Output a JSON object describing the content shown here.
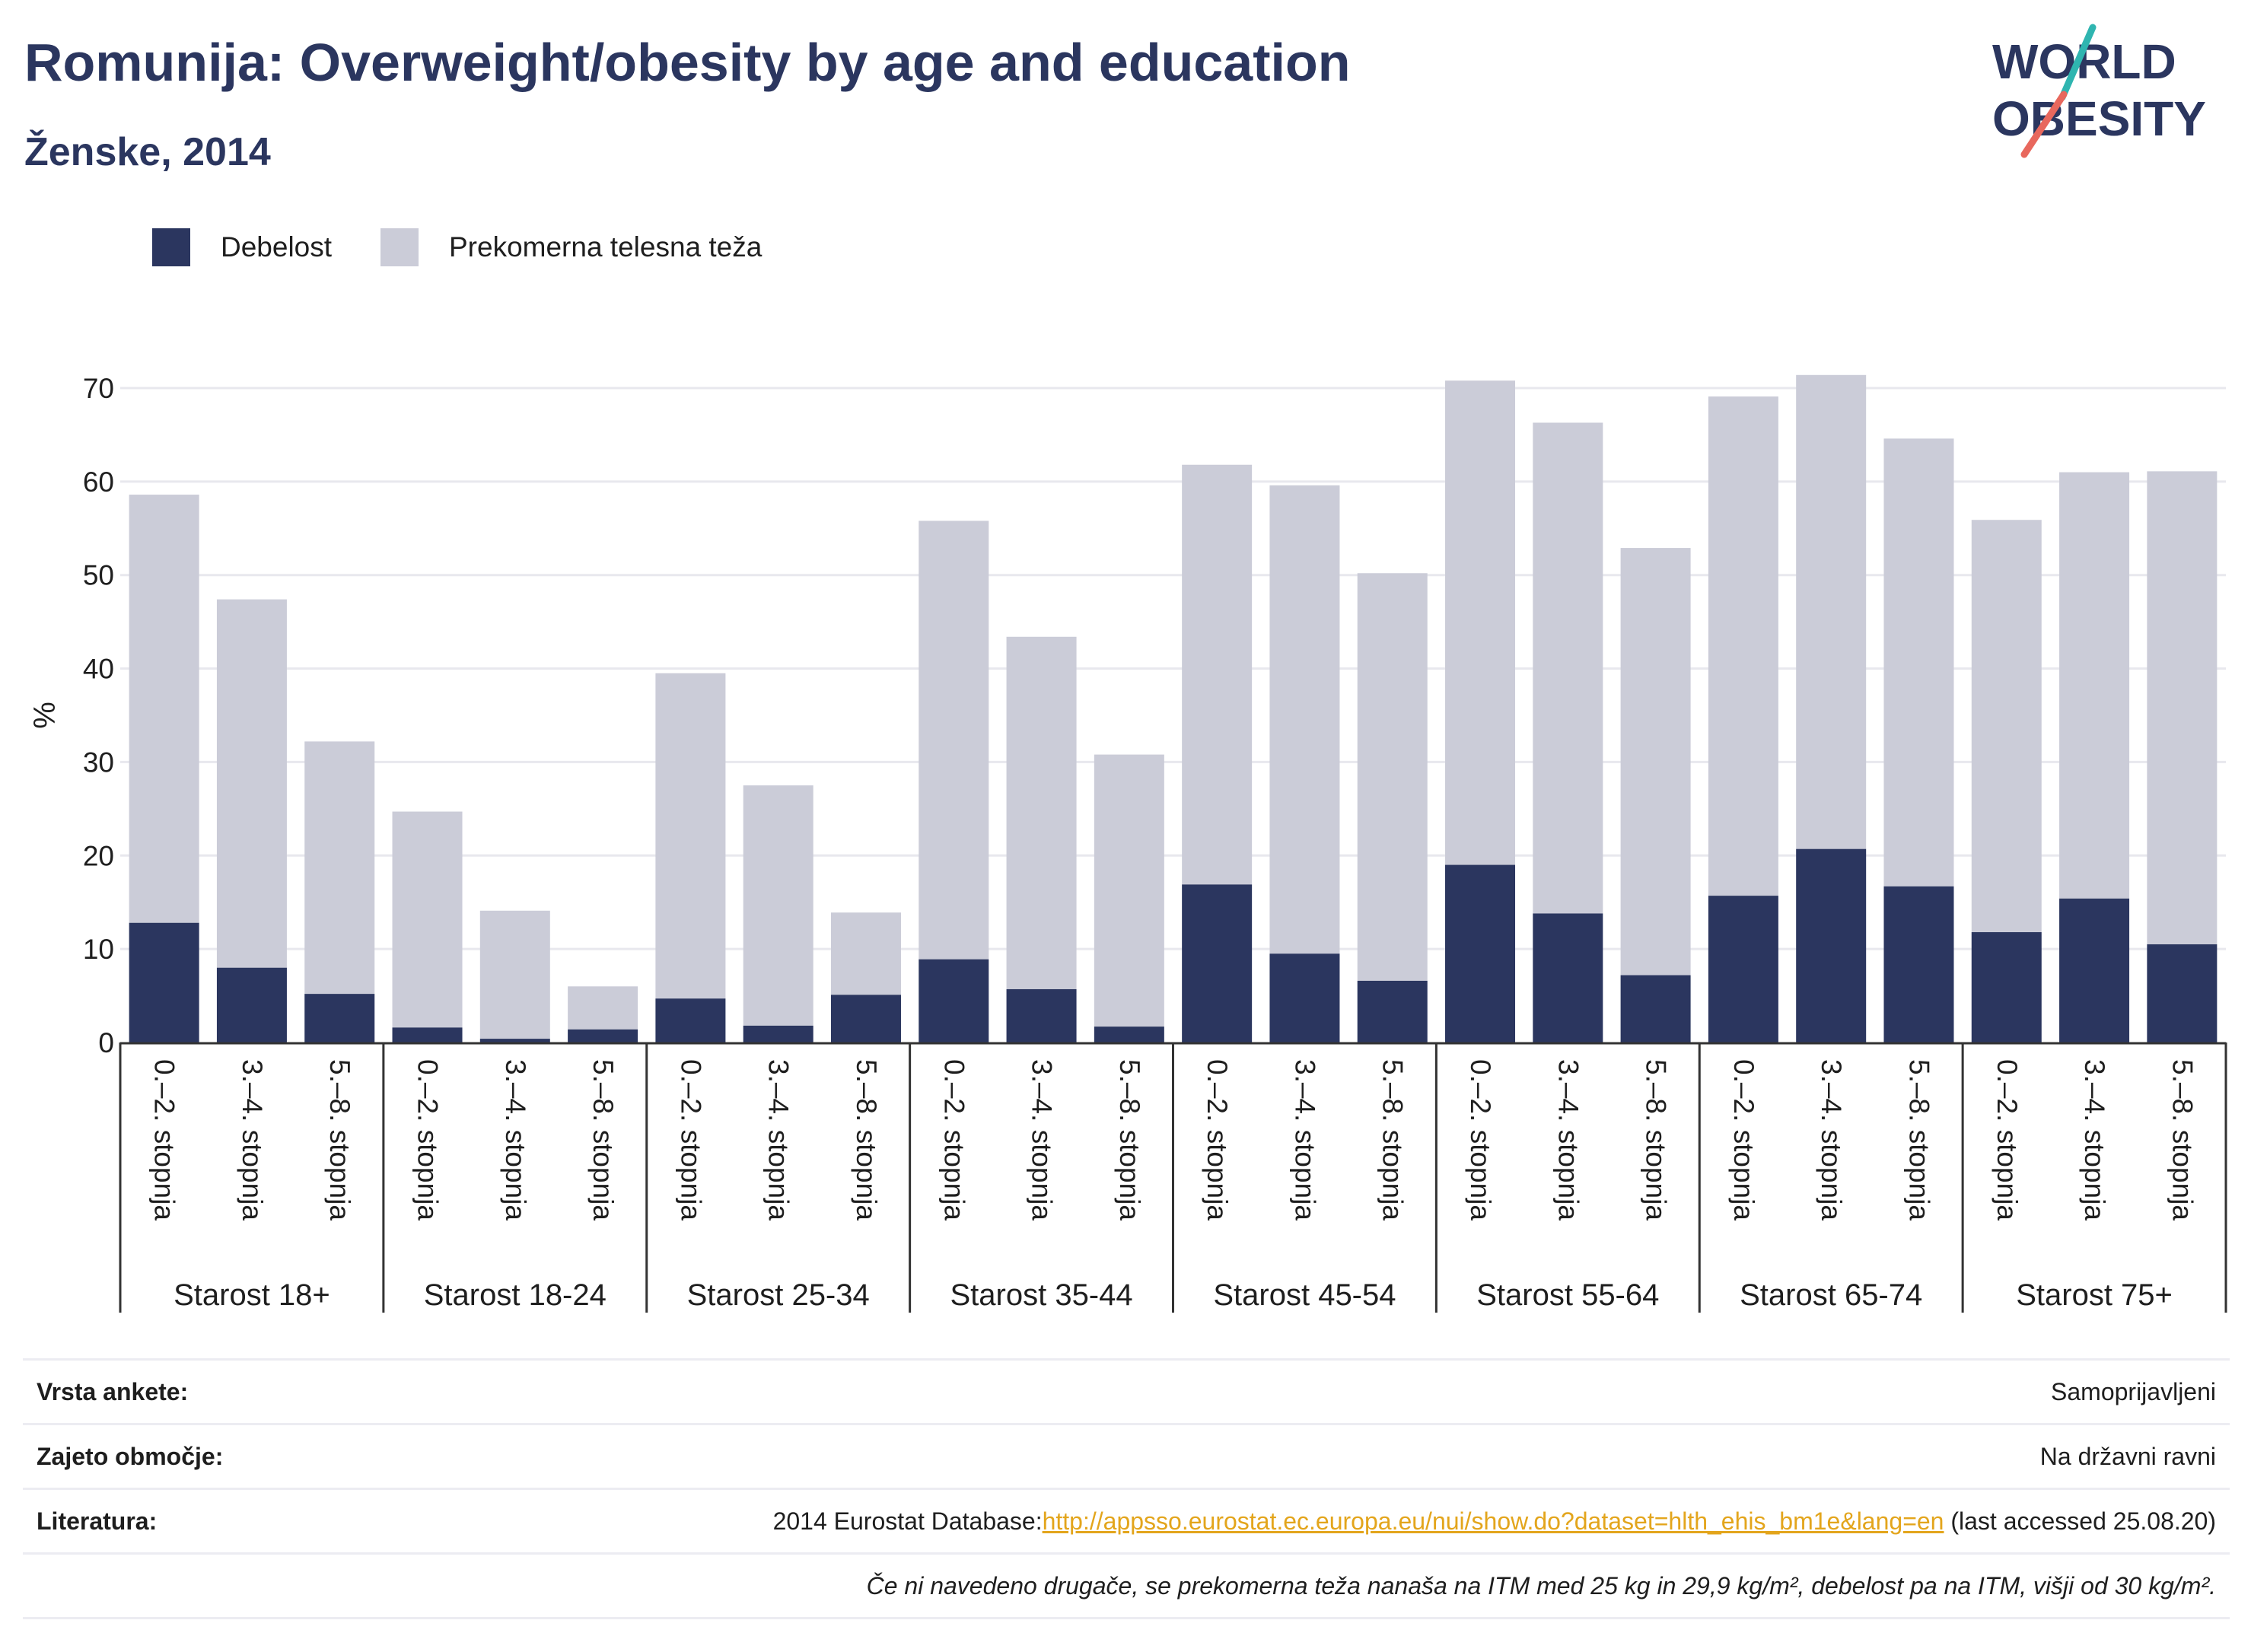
{
  "header": {
    "title": "Romunija: Overweight/obesity by age and education",
    "subtitle": "Ženske, 2014"
  },
  "logo": {
    "line1": "WORLD",
    "line2": "OBESITY",
    "colors": {
      "text": "#2b365f",
      "slash_teal": "#2fb5b0",
      "slash_coral": "#e8685d"
    }
  },
  "legend": [
    {
      "label": "Debelost",
      "color": "#2b365f"
    },
    {
      "label": "Prekomerna telesna teža",
      "color": "#cbccd8"
    }
  ],
  "chart_data": {
    "type": "bar",
    "stacked": true,
    "ylabel": "%",
    "ylim": [
      0,
      72
    ],
    "yticks": [
      0,
      10,
      20,
      30,
      40,
      50,
      60,
      70
    ],
    "grid": true,
    "legend_position": "top-left",
    "groups": [
      "Starost 18+",
      "Starost 18-24",
      "Starost 25-34",
      "Starost 35-44",
      "Starost 45-54",
      "Starost 55-64",
      "Starost 65-74",
      "Starost 75+"
    ],
    "subcategories": [
      "0.–2. stopnja",
      "3.–4. stopnja",
      "5.–8. stopnja"
    ],
    "series": [
      {
        "name": "Debelost",
        "color": "#2b365f",
        "values": [
          12.8,
          8.0,
          5.2,
          1.6,
          0.4,
          1.4,
          4.7,
          1.8,
          5.1,
          8.9,
          5.7,
          1.7,
          16.9,
          9.5,
          6.6,
          19.0,
          13.8,
          7.2,
          15.7,
          20.7,
          16.7,
          11.8,
          15.4,
          10.5
        ]
      },
      {
        "name": "Prekomerna telesna teža",
        "color": "#cbccd8",
        "values": [
          45.8,
          39.4,
          27.0,
          23.1,
          13.7,
          4.6,
          34.8,
          25.7,
          8.8,
          46.9,
          37.7,
          29.1,
          44.9,
          50.1,
          43.6,
          51.8,
          52.5,
          45.7,
          53.4,
          50.7,
          47.9,
          44.1,
          45.6,
          50.6
        ]
      }
    ]
  },
  "meta": {
    "rows": [
      {
        "label": "Vrsta ankete:",
        "value": "Samoprijavljeni"
      },
      {
        "label": "Zajeto območje:",
        "value": "Na državni ravni"
      }
    ],
    "literature": {
      "label": "Literatura:",
      "prefix": "2014 Eurostat Database:",
      "link": "http://appsso.eurostat.ec.europa.eu/nui/show.do?dataset=hlth_ehis_bm1e&lang=en",
      "suffix": " (last accessed 25.08.20)"
    },
    "note": "Če ni navedeno drugače, se prekomerna teža nanaša na ITM med 25 kg in 29,9 kg/m², debelost pa na ITM, višji od 30 kg/m²."
  }
}
